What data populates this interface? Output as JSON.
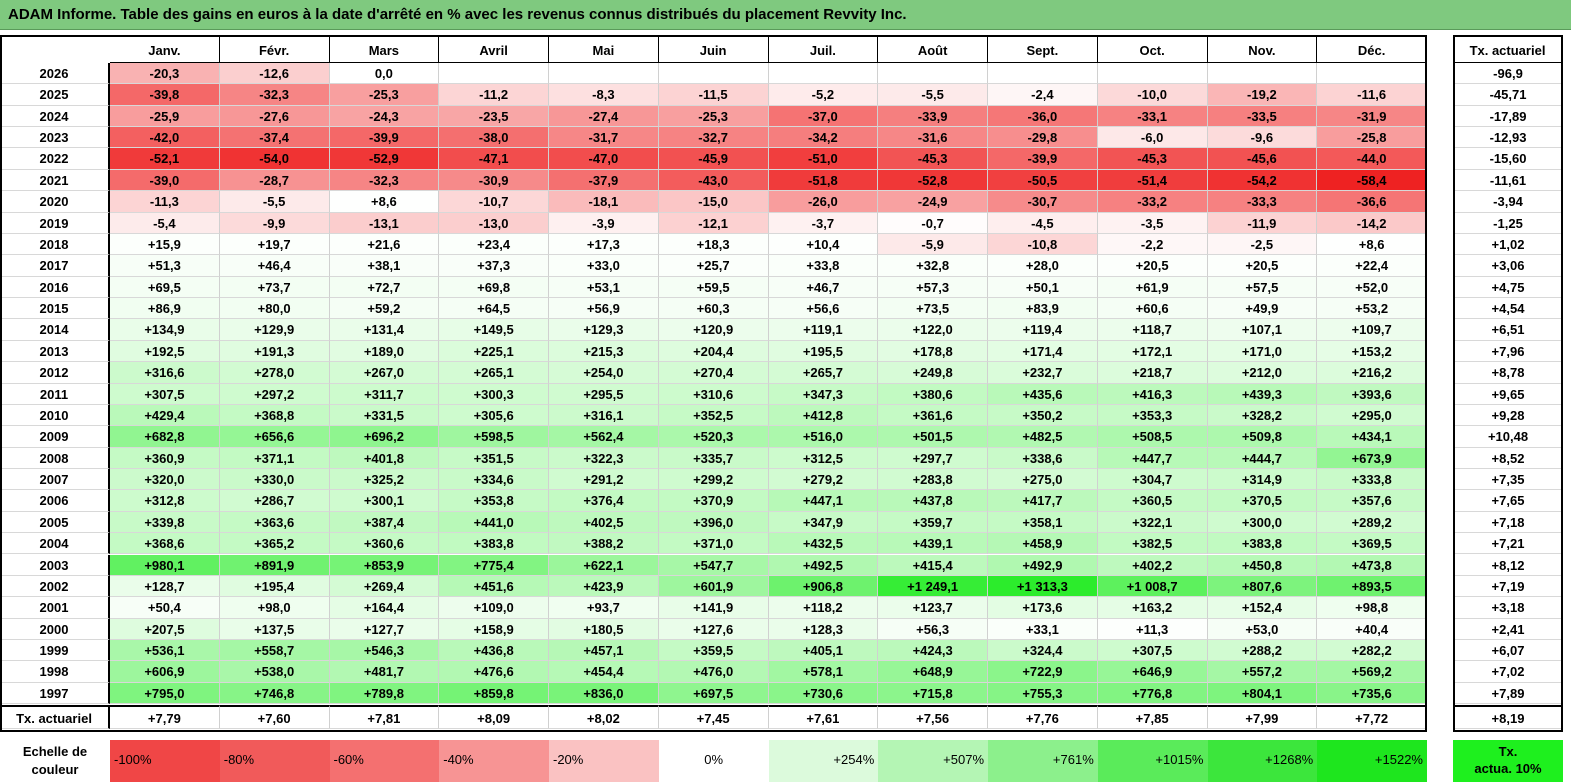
{
  "title": "ADAM Informe. Table des gains en euros à la date d'arrêté en % avec les revenus connus distribués du placement Revvity Inc.",
  "months": [
    "Janv.",
    "Févr.",
    "Mars",
    "Avril",
    "Mai",
    "Juin",
    "Juil.",
    "Août",
    "Sept.",
    "Oct.",
    "Nov.",
    "Déc."
  ],
  "actuariel_header": "Tx. actuariel",
  "rows": [
    {
      "year": "2026",
      "cells": [
        "-20,3",
        "-12,6",
        "0,0",
        "",
        "",
        "",
        "",
        "",
        "",
        "",
        "",
        ""
      ],
      "act": "-96,9"
    },
    {
      "year": "2025",
      "cells": [
        "-39,8",
        "-32,3",
        "-25,3",
        "-11,2",
        "-8,3",
        "-11,5",
        "-5,2",
        "-5,5",
        "-2,4",
        "-10,0",
        "-19,2",
        "-11,6"
      ],
      "act": "-45,71"
    },
    {
      "year": "2024",
      "cells": [
        "-25,9",
        "-27,6",
        "-24,3",
        "-23,5",
        "-27,4",
        "-25,3",
        "-37,0",
        "-33,9",
        "-36,0",
        "-33,1",
        "-33,5",
        "-31,9"
      ],
      "act": "-17,89"
    },
    {
      "year": "2023",
      "cells": [
        "-42,0",
        "-37,4",
        "-39,9",
        "-38,0",
        "-31,7",
        "-32,7",
        "-34,2",
        "-31,6",
        "-29,8",
        "-6,0",
        "-9,6",
        "-25,8"
      ],
      "act": "-12,93"
    },
    {
      "year": "2022",
      "cells": [
        "-52,1",
        "-54,0",
        "-52,9",
        "-47,1",
        "-47,0",
        "-45,9",
        "-51,0",
        "-45,3",
        "-39,9",
        "-45,3",
        "-45,6",
        "-44,0"
      ],
      "act": "-15,60"
    },
    {
      "year": "2021",
      "cells": [
        "-39,0",
        "-28,7",
        "-32,3",
        "-30,9",
        "-37,9",
        "-43,0",
        "-51,8",
        "-52,8",
        "-50,5",
        "-51,4",
        "-54,2",
        "-58,4"
      ],
      "act": "-11,61"
    },
    {
      "year": "2020",
      "cells": [
        "-11,3",
        "-5,5",
        "+8,6",
        "-10,7",
        "-18,1",
        "-15,0",
        "-26,0",
        "-24,9",
        "-30,7",
        "-33,2",
        "-33,3",
        "-36,6"
      ],
      "act": "-3,94"
    },
    {
      "year": "2019",
      "cells": [
        "-5,4",
        "-9,9",
        "-13,1",
        "-13,0",
        "-3,9",
        "-12,1",
        "-3,7",
        "-0,7",
        "-4,5",
        "-3,5",
        "-11,9",
        "-14,2"
      ],
      "act": "-1,25"
    },
    {
      "year": "2018",
      "cells": [
        "+15,9",
        "+19,7",
        "+21,6",
        "+23,4",
        "+17,3",
        "+18,3",
        "+10,4",
        "-5,9",
        "-10,8",
        "-2,2",
        "-2,5",
        "+8,6"
      ],
      "act": "+1,02"
    },
    {
      "year": "2017",
      "cells": [
        "+51,3",
        "+46,4",
        "+38,1",
        "+37,3",
        "+33,0",
        "+25,7",
        "+33,8",
        "+32,8",
        "+28,0",
        "+20,5",
        "+20,5",
        "+22,4"
      ],
      "act": "+3,06"
    },
    {
      "year": "2016",
      "cells": [
        "+69,5",
        "+73,7",
        "+72,7",
        "+69,8",
        "+53,1",
        "+59,5",
        "+46,7",
        "+57,3",
        "+50,1",
        "+61,9",
        "+57,5",
        "+52,0"
      ],
      "act": "+4,75"
    },
    {
      "year": "2015",
      "cells": [
        "+86,9",
        "+80,0",
        "+59,2",
        "+64,5",
        "+56,9",
        "+60,3",
        "+56,6",
        "+73,5",
        "+83,9",
        "+60,6",
        "+49,9",
        "+53,2"
      ],
      "act": "+4,54"
    },
    {
      "year": "2014",
      "cells": [
        "+134,9",
        "+129,9",
        "+131,4",
        "+149,5",
        "+129,3",
        "+120,9",
        "+119,1",
        "+122,0",
        "+119,4",
        "+118,7",
        "+107,1",
        "+109,7"
      ],
      "act": "+6,51"
    },
    {
      "year": "2013",
      "cells": [
        "+192,5",
        "+191,3",
        "+189,0",
        "+225,1",
        "+215,3",
        "+204,4",
        "+195,5",
        "+178,8",
        "+171,4",
        "+172,1",
        "+171,0",
        "+153,2"
      ],
      "act": "+7,96"
    },
    {
      "year": "2012",
      "cells": [
        "+316,6",
        "+278,0",
        "+267,0",
        "+265,1",
        "+254,0",
        "+270,4",
        "+265,7",
        "+249,8",
        "+232,7",
        "+218,7",
        "+212,0",
        "+216,2"
      ],
      "act": "+8,78"
    },
    {
      "year": "2011",
      "cells": [
        "+307,5",
        "+297,2",
        "+311,7",
        "+300,3",
        "+295,5",
        "+310,6",
        "+347,3",
        "+380,6",
        "+435,6",
        "+416,3",
        "+439,3",
        "+393,6"
      ],
      "act": "+9,65"
    },
    {
      "year": "2010",
      "cells": [
        "+429,4",
        "+368,8",
        "+331,5",
        "+305,6",
        "+316,1",
        "+352,5",
        "+412,8",
        "+361,6",
        "+350,2",
        "+353,3",
        "+328,2",
        "+295,0"
      ],
      "act": "+9,28"
    },
    {
      "year": "2009",
      "cells": [
        "+682,8",
        "+656,6",
        "+696,2",
        "+598,5",
        "+562,4",
        "+520,3",
        "+516,0",
        "+501,5",
        "+482,5",
        "+508,5",
        "+509,8",
        "+434,1"
      ],
      "act": "+10,48"
    },
    {
      "year": "2008",
      "cells": [
        "+360,9",
        "+371,1",
        "+401,8",
        "+351,5",
        "+322,3",
        "+335,7",
        "+312,5",
        "+297,7",
        "+338,6",
        "+447,7",
        "+444,7",
        "+673,9"
      ],
      "act": "+8,52"
    },
    {
      "year": "2007",
      "cells": [
        "+320,0",
        "+330,0",
        "+325,2",
        "+334,6",
        "+291,2",
        "+299,2",
        "+279,2",
        "+283,8",
        "+275,0",
        "+304,7",
        "+314,9",
        "+333,8"
      ],
      "act": "+7,35"
    },
    {
      "year": "2006",
      "cells": [
        "+312,8",
        "+286,7",
        "+300,1",
        "+353,8",
        "+376,4",
        "+370,9",
        "+447,1",
        "+437,8",
        "+417,7",
        "+360,5",
        "+370,5",
        "+357,6"
      ],
      "act": "+7,65"
    },
    {
      "year": "2005",
      "cells": [
        "+339,8",
        "+363,6",
        "+387,4",
        "+441,0",
        "+402,5",
        "+396,0",
        "+347,9",
        "+359,7",
        "+358,1",
        "+322,1",
        "+300,0",
        "+289,2"
      ],
      "act": "+7,18"
    },
    {
      "year": "2004",
      "cells": [
        "+368,6",
        "+365,2",
        "+360,6",
        "+383,8",
        "+388,2",
        "+371,0",
        "+432,5",
        "+439,1",
        "+458,9",
        "+382,5",
        "+383,8",
        "+369,5"
      ],
      "act": "+7,21"
    },
    {
      "year": "2003",
      "cells": [
        "+980,1",
        "+891,9",
        "+853,9",
        "+775,4",
        "+622,1",
        "+547,7",
        "+492,5",
        "+415,4",
        "+492,9",
        "+402,2",
        "+450,8",
        "+473,8"
      ],
      "act": "+8,12"
    },
    {
      "year": "2002",
      "cells": [
        "+128,7",
        "+195,4",
        "+269,4",
        "+451,6",
        "+423,9",
        "+601,9",
        "+906,8",
        "+1 249,1",
        "+1 313,3",
        "+1 008,7",
        "+807,6",
        "+893,5"
      ],
      "act": "+7,19"
    },
    {
      "year": "2001",
      "cells": [
        "+50,4",
        "+98,0",
        "+164,4",
        "+109,0",
        "+93,7",
        "+141,9",
        "+118,2",
        "+123,7",
        "+173,6",
        "+163,2",
        "+152,4",
        "+98,8"
      ],
      "act": "+3,18"
    },
    {
      "year": "2000",
      "cells": [
        "+207,5",
        "+137,5",
        "+127,7",
        "+158,9",
        "+180,5",
        "+127,6",
        "+128,3",
        "+56,3",
        "+33,1",
        "+11,3",
        "+53,0",
        "+40,4"
      ],
      "act": "+2,41"
    },
    {
      "year": "1999",
      "cells": [
        "+536,1",
        "+558,7",
        "+546,3",
        "+436,8",
        "+457,1",
        "+359,5",
        "+405,1",
        "+424,3",
        "+324,4",
        "+307,5",
        "+288,2",
        "+282,2"
      ],
      "act": "+6,07"
    },
    {
      "year": "1998",
      "cells": [
        "+606,9",
        "+538,0",
        "+481,7",
        "+476,6",
        "+454,4",
        "+476,0",
        "+578,1",
        "+648,9",
        "+722,9",
        "+646,9",
        "+557,2",
        "+569,2"
      ],
      "act": "+7,02"
    },
    {
      "year": "1997",
      "cells": [
        "+795,0",
        "+746,8",
        "+789,8",
        "+859,8",
        "+836,0",
        "+697,5",
        "+730,6",
        "+715,8",
        "+755,3",
        "+776,8",
        "+804,1",
        "+735,6"
      ],
      "act": "+7,89"
    }
  ],
  "footer": {
    "label": "Tx. actuariel",
    "cells": [
      "+7,79",
      "+7,60",
      "+7,81",
      "+8,09",
      "+8,02",
      "+7,45",
      "+7,61",
      "+7,56",
      "+7,76",
      "+7,85",
      "+7,99",
      "+7,72"
    ],
    "act": "+8,19"
  },
  "scale": {
    "label_line1": "Echelle de",
    "label_line2": "couleur",
    "items": [
      {
        "label": "-100%",
        "color": "#f04646"
      },
      {
        "label": "-80%",
        "color": "#f15a5a"
      },
      {
        "label": "-60%",
        "color": "#f47070"
      },
      {
        "label": "-40%",
        "color": "#f79494"
      },
      {
        "label": "-20%",
        "color": "#fac2c2"
      },
      {
        "label": "0%",
        "color": "#ffffff"
      },
      {
        "label": "+254%",
        "color": "#dcfadc"
      },
      {
        "label": "+507%",
        "color": "#b4f5b4"
      },
      {
        "label": "+761%",
        "color": "#8cf08c"
      },
      {
        "label": "+1015%",
        "color": "#5aeb5a"
      },
      {
        "label": "+1268%",
        "color": "#3ce63c"
      },
      {
        "label": "+1522%",
        "color": "#1ee61e"
      }
    ],
    "last_line1": "Tx.",
    "last_line2": "actua. 10%",
    "last_color": "#1ef01e"
  }
}
